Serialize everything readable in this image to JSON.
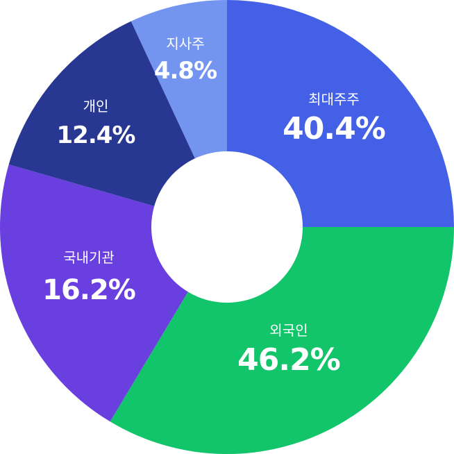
{
  "chart_data": {
    "type": "pie",
    "variant": "donut",
    "title": "",
    "slices": [
      {
        "key": "major",
        "label": "최대주주",
        "value": 40.4,
        "value_label": "40.4%",
        "color": "#4460E6"
      },
      {
        "key": "foreign",
        "label": "외국인",
        "value": 46.2,
        "value_label": "46.2%",
        "color": "#12C46A"
      },
      {
        "key": "inst",
        "label": "국내기관",
        "value": 16.2,
        "value_label": "16.2%",
        "color": "#6A3FDF"
      },
      {
        "key": "indiv",
        "label": "개인",
        "value": 12.4,
        "value_label": "12.4%",
        "color": "#283892"
      },
      {
        "key": "treasury",
        "label": "지사주",
        "value": 4.8,
        "value_label": "4.8%",
        "color": "#7395F0"
      }
    ]
  }
}
